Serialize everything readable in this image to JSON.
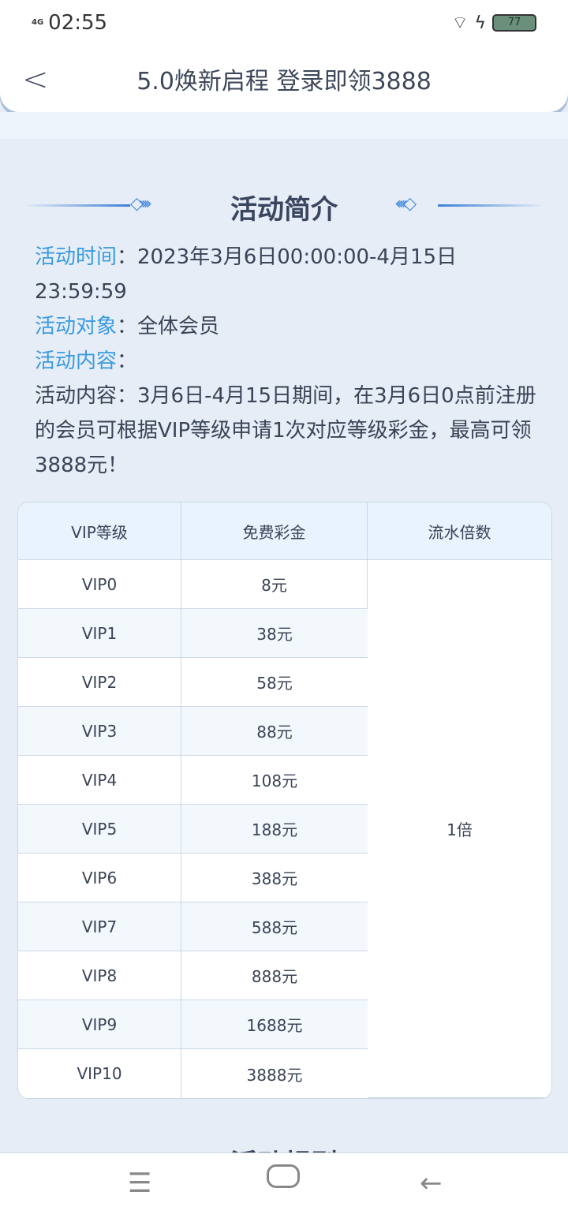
{
  "status": {
    "network": "4G",
    "time": "02:55",
    "battery": "77"
  },
  "header": {
    "title": "5.0焕新启程 登录即领3888"
  },
  "section": {
    "title": "活动简介"
  },
  "info": {
    "time_label": "活动时间",
    "time_value": "：2023年3月6日00:00:00-4月15日23:59:59",
    "target_label": "活动对象",
    "target_value": "：全体会员",
    "content_label": "活动内容",
    "content_colon": "：",
    "content_text": "活动内容：3月6日-4月15日期间，在3月6日0点前注册的会员可根据VIP等级申请1次对应等级彩金，最高可领3888元！"
  },
  "table": {
    "headers": [
      "VIP等级",
      "免费彩金",
      "流水倍数"
    ],
    "rows": [
      [
        "VIP0",
        "8元"
      ],
      [
        "VIP1",
        "38元"
      ],
      [
        "VIP2",
        "58元"
      ],
      [
        "VIP3",
        "88元"
      ],
      [
        "VIP4",
        "108元"
      ],
      [
        "VIP5",
        "188元"
      ],
      [
        "VIP6",
        "388元"
      ],
      [
        "VIP7",
        "588元"
      ],
      [
        "VIP8",
        "888元"
      ],
      [
        "VIP9",
        "1688元"
      ],
      [
        "VIP10",
        "3888元"
      ]
    ],
    "multiplier": "1倍"
  },
  "section2": {
    "title": "活动规则"
  }
}
